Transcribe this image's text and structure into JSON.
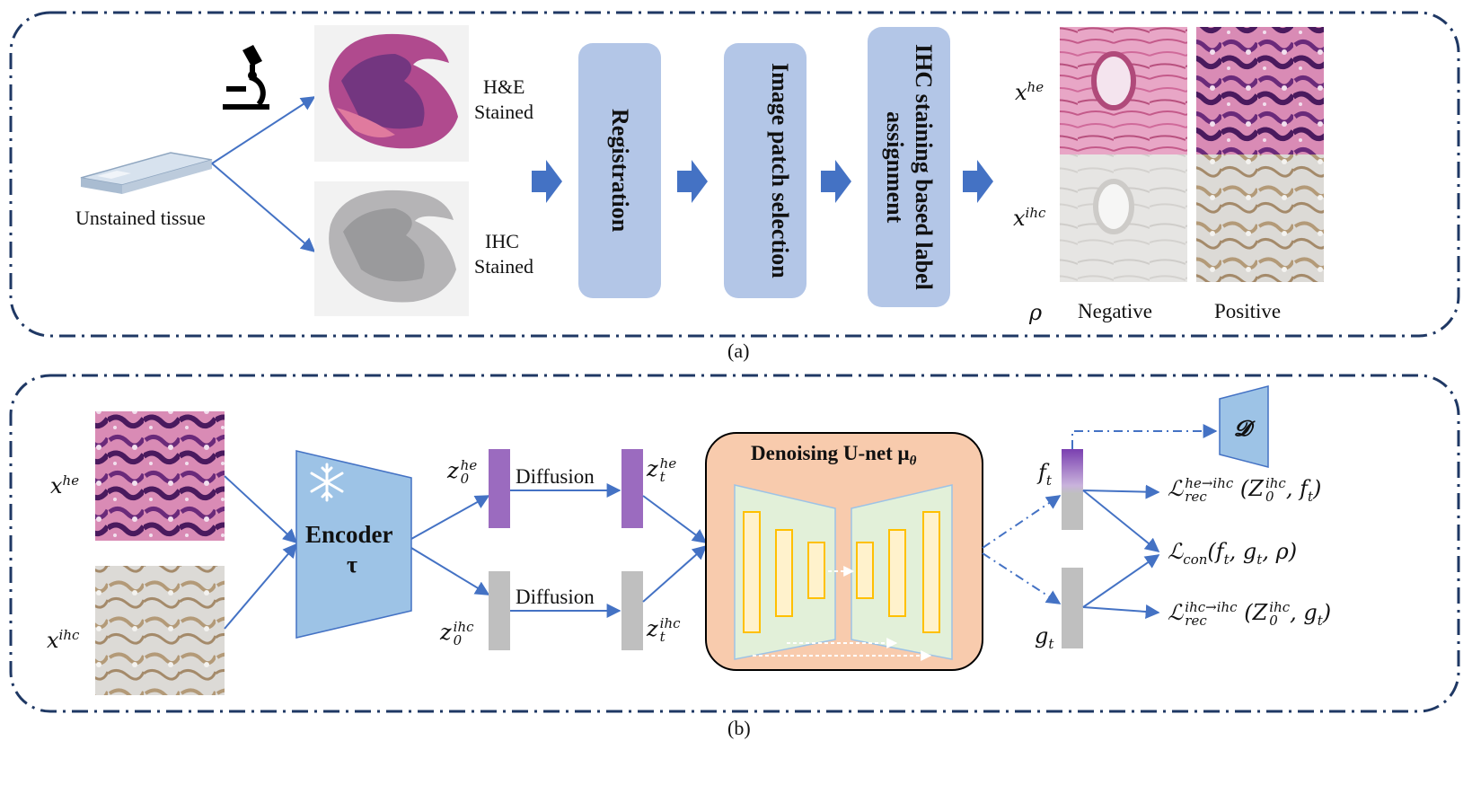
{
  "panel_a": {
    "caption": "(a)",
    "slide_label": "Unstained tissue",
    "he_label_1": "H&E",
    "he_label_2": "Stained",
    "ihc_label_1": "IHC",
    "ihc_label_2": "Stained",
    "steps": [
      "Registration",
      "Image patch selection",
      "IHC staining based label assignment"
    ],
    "x_he": {
      "base": "x",
      "sup": "he"
    },
    "x_ihc": {
      "base": "x",
      "sup": "ihc"
    },
    "rho": "ρ",
    "negative": "Negative",
    "positive": "Positive"
  },
  "panel_b": {
    "caption": "(b)",
    "x_he": {
      "base": "x",
      "sup": "he"
    },
    "x_ihc": {
      "base": "x",
      "sup": "ihc"
    },
    "encoder_title": "Encoder",
    "encoder_symbol": "τ",
    "z0_he": {
      "base": "z",
      "sup": "he",
      "sub": "0"
    },
    "z0_ihc": {
      "base": "z",
      "sup": "ihc",
      "sub": "0"
    },
    "zt_he": {
      "base": "z",
      "sup": "he",
      "sub": "t"
    },
    "zt_ihc": {
      "base": "z",
      "sup": "ihc",
      "sub": "t"
    },
    "diffusion_1": "Diffusion",
    "diffusion_2": "Diffusion",
    "unet_title": "Denoising U-net μ",
    "unet_sub": "θ",
    "f_t": {
      "base": "f",
      "sub": "t"
    },
    "g_t": {
      "base": "g",
      "sub": "t"
    },
    "discriminator": "𝓓",
    "loss_rec_he": {
      "base": "ℒ",
      "sup": "he→ihc",
      "sub": "rec",
      "args": "(Z",
      "args_sup": "ihc",
      "args_sub": "0",
      "args_end": ", f",
      "args_end_sub": "t",
      "close": ")"
    },
    "loss_con": {
      "base": "ℒ",
      "sub": "con",
      "args": "(f",
      "a_sub": "t",
      "mid": ", g",
      "m_sub": "t",
      "end": ", ρ)"
    },
    "loss_rec_ihc": {
      "base": "ℒ",
      "sup": "ihc→ihc",
      "sub": "rec",
      "args": "(Z",
      "args_sup": "ihc",
      "args_sub": "0",
      "args_end": ", g",
      "args_end_sub": "t",
      "close": ")"
    }
  },
  "colors": {
    "arrow": "#4472c4",
    "step_box": "#b3c6e7",
    "encoder": "#9dc3e6",
    "unet_bg": "#f8cbad",
    "unet_trap": "#e2f0d9",
    "unet_bar": "#ffc000",
    "latent_he": "#9b6bbf",
    "latent_ihc": "#bfbfbf",
    "border": "#1f3864"
  }
}
